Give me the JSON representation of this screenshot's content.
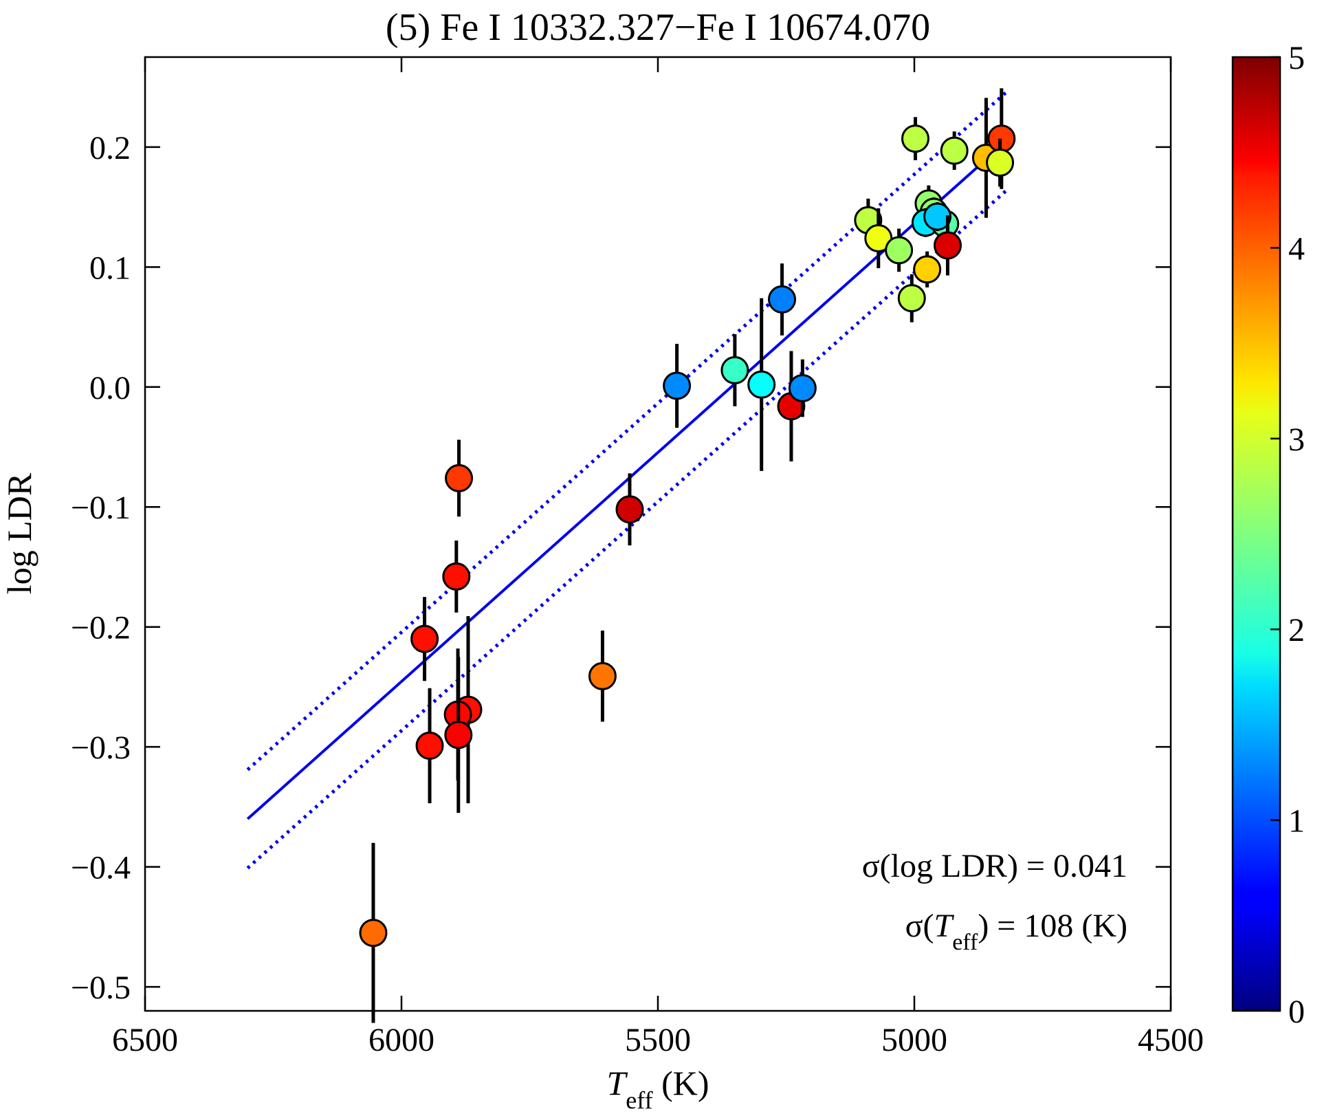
{
  "chart_data": {
    "type": "scatter",
    "title": "(5) Fe I 10332.327−Fe I 10674.070",
    "xlabel": {
      "main": "T",
      "sub": "eff",
      "unit": " (K)"
    },
    "ylabel": "log LDR",
    "xlim": [
      6500,
      4500
    ],
    "ylim": [
      -0.52,
      0.275
    ],
    "xticks": [
      6500,
      6000,
      5500,
      5000,
      4500
    ],
    "yticks": [
      -0.5,
      -0.4,
      -0.3,
      -0.2,
      -0.1,
      0.0,
      0.1,
      0.2
    ],
    "ytick_labels": [
      "−0.5",
      "−0.4",
      "−0.3",
      "−0.2",
      "−0.1",
      "0.0",
      "0.1",
      "0.2"
    ],
    "fit_line": {
      "x": [
        6300,
        4820
      ],
      "y": [
        -0.36,
        0.205
      ],
      "color": "#0000ee",
      "style": "solid"
    },
    "scatter_band": [
      {
        "x": [
          6300,
          4820
        ],
        "y": [
          -0.319,
          0.246
        ],
        "color": "#0000ee",
        "style": "dotted"
      },
      {
        "x": [
          6300,
          4820
        ],
        "y": [
          -0.401,
          0.164
        ],
        "color": "#0000ee",
        "style": "dotted"
      }
    ],
    "colorbar": {
      "min": 0,
      "max": 5,
      "ticks": [
        0,
        1,
        2,
        3,
        4,
        5
      ],
      "colormap": "jet"
    },
    "points": [
      {
        "x": 6055,
        "y": -0.455,
        "err": 0.075,
        "c": 3.85
      },
      {
        "x": 5945,
        "y": -0.299,
        "err": 0.048,
        "c": 4.3
      },
      {
        "x": 5955,
        "y": -0.21,
        "err": 0.035,
        "c": 4.3
      },
      {
        "x": 5888,
        "y": -0.076,
        "err": 0.032,
        "c": 4.1
      },
      {
        "x": 5893,
        "y": -0.158,
        "err": 0.03,
        "c": 4.3
      },
      {
        "x": 5870,
        "y": -0.269,
        "err": 0.078,
        "c": 4.3
      },
      {
        "x": 5890,
        "y": -0.273,
        "err": 0.055,
        "c": 4.35
      },
      {
        "x": 5889,
        "y": -0.29,
        "err": 0.065,
        "c": 4.4
      },
      {
        "x": 5608,
        "y": -0.241,
        "err": 0.038,
        "c": 3.8
      },
      {
        "x": 5555,
        "y": -0.102,
        "err": 0.03,
        "c": 4.6
      },
      {
        "x": 5463,
        "y": 0.001,
        "err": 0.035,
        "c": 1.3
      },
      {
        "x": 5350,
        "y": 0.014,
        "err": 0.03,
        "c": 2.15
      },
      {
        "x": 5298,
        "y": 0.002,
        "err": 0.072,
        "c": 1.9
      },
      {
        "x": 5258,
        "y": 0.073,
        "err": 0.03,
        "c": 1.25
      },
      {
        "x": 5240,
        "y": -0.016,
        "err": 0.046,
        "c": 4.5
      },
      {
        "x": 5218,
        "y": -0.001,
        "err": 0.024,
        "c": 1.3
      },
      {
        "x": 5090,
        "y": 0.139,
        "err": 0.018,
        "c": 2.8
      },
      {
        "x": 5070,
        "y": 0.124,
        "err": 0.025,
        "c": 3.05
      },
      {
        "x": 5030,
        "y": 0.114,
        "err": 0.018,
        "c": 2.65
      },
      {
        "x": 5005,
        "y": 0.074,
        "err": 0.02,
        "c": 2.8
      },
      {
        "x": 4975,
        "y": 0.098,
        "err": 0.015,
        "c": 3.35
      },
      {
        "x": 4998,
        "y": 0.207,
        "err": 0.018,
        "c": 2.8
      },
      {
        "x": 4972,
        "y": 0.153,
        "err": 0.015,
        "c": 2.6
      },
      {
        "x": 4962,
        "y": 0.146,
        "err": 0.012,
        "c": 2.6
      },
      {
        "x": 4978,
        "y": 0.137,
        "err": 0.012,
        "c": 1.75
      },
      {
        "x": 4940,
        "y": 0.136,
        "err": 0.015,
        "c": 2.3
      },
      {
        "x": 4955,
        "y": 0.142,
        "err": 0.012,
        "c": 1.6
      },
      {
        "x": 4935,
        "y": 0.118,
        "err": 0.025,
        "c": 4.55
      },
      {
        "x": 4922,
        "y": 0.197,
        "err": 0.016,
        "c": 2.8
      },
      {
        "x": 4860,
        "y": 0.191,
        "err": 0.05,
        "c": 3.45
      },
      {
        "x": 4830,
        "y": 0.207,
        "err": 0.042,
        "c": 4.1
      },
      {
        "x": 4833,
        "y": 0.187,
        "err": 0.02,
        "c": 2.95
      }
    ],
    "annotations": [
      {
        "pre": "σ(log LDR) = 0.041"
      },
      {
        "pre": "σ(",
        "main": "T",
        "sub": "eff",
        "post": ") = 108 (K)"
      }
    ]
  }
}
